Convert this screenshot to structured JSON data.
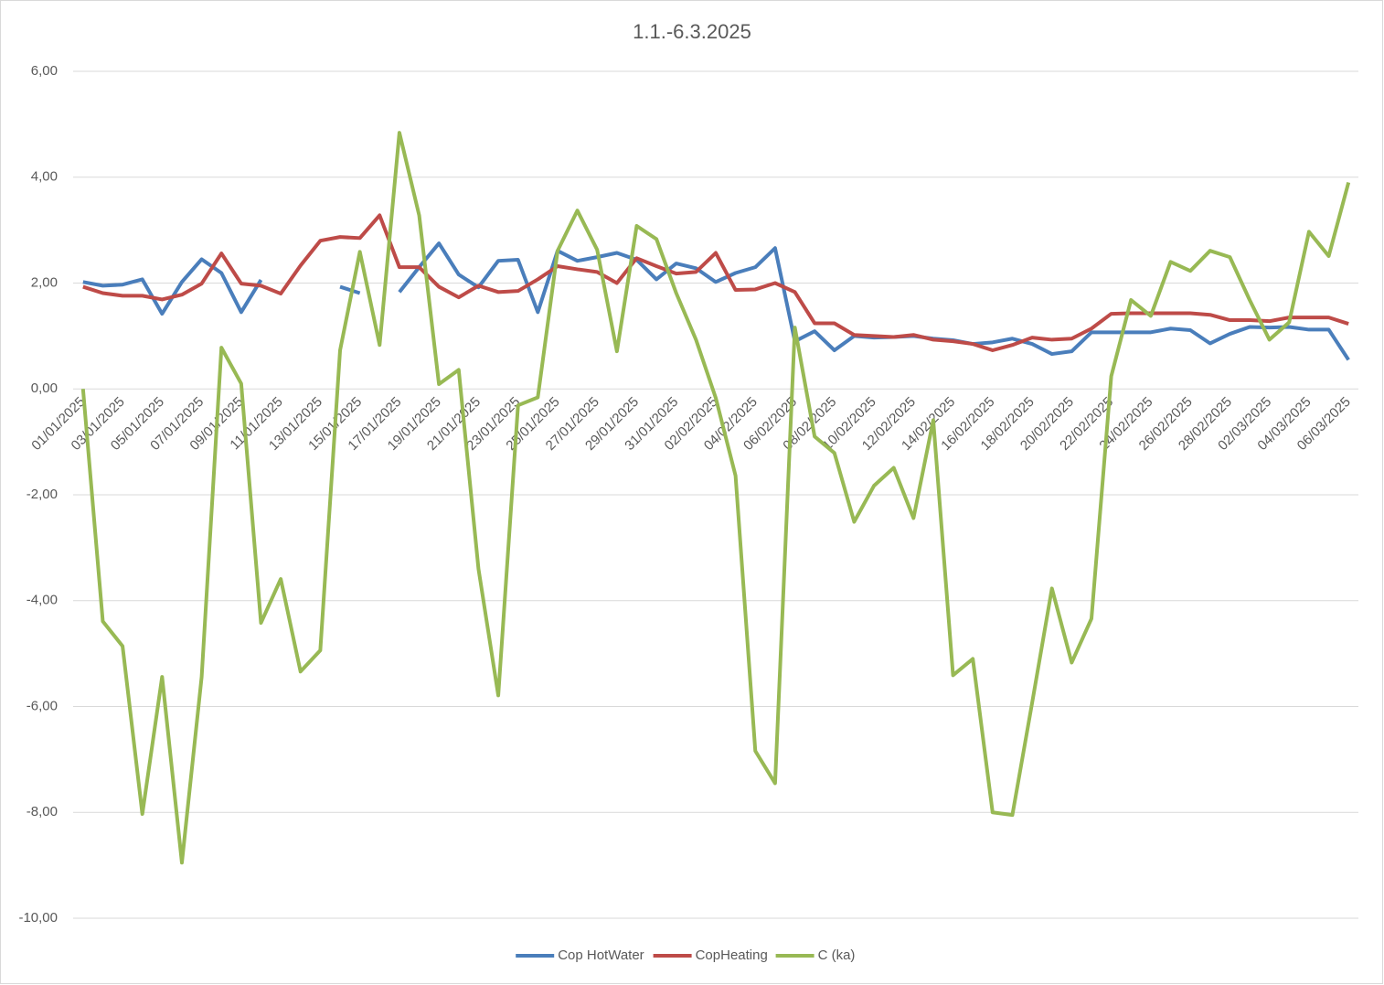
{
  "chart_data": {
    "type": "line",
    "title": "1.1.-6.3.2025",
    "categories": [
      "01/01/2025",
      null,
      "03/01/2025",
      null,
      "05/01/2025",
      null,
      "07/01/2025",
      null,
      "09/01/2025",
      null,
      "11/01/2025",
      null,
      "13/01/2025",
      null,
      "15/01/2025",
      null,
      "17/01/2025",
      null,
      "19/01/2025",
      null,
      "21/01/2025",
      null,
      "23/01/2025",
      null,
      "25/01/2025",
      null,
      "27/01/2025",
      null,
      "29/01/2025",
      null,
      "31/01/2025",
      null,
      "02/02/2025",
      null,
      "04/02/2025",
      null,
      "06/02/2025",
      null,
      "08/02/2025",
      null,
      "10/02/2025",
      null,
      "12/02/2025",
      null,
      "14/02/2025",
      null,
      "16/02/2025",
      null,
      "18/02/2025",
      null,
      "20/02/2025",
      null,
      "22/02/2025",
      null,
      "24/02/2025",
      null,
      "26/02/2025",
      null,
      "28/02/2025",
      null,
      "02/03/2025",
      null,
      "04/03/2025",
      null,
      "06/03/2025"
    ],
    "series": [
      {
        "name": "Cop HotWater",
        "color": "#4a7ebb",
        "values": [
          2.02,
          1.95,
          1.97,
          2.07,
          1.42,
          2.02,
          2.45,
          2.19,
          1.45,
          2.06,
          null,
          null,
          null,
          1.93,
          1.81,
          null,
          1.83,
          2.3,
          2.75,
          2.16,
          1.92,
          2.42,
          2.44,
          1.45,
          2.61,
          2.42,
          2.49,
          2.57,
          2.44,
          2.07,
          2.37,
          2.28,
          2.02,
          2.19,
          2.3,
          2.66,
          0.9,
          1.09,
          0.73,
          1.0,
          0.97,
          0.98,
          1.0,
          0.95,
          0.92,
          0.85,
          0.88,
          0.95,
          0.85,
          0.66,
          0.71,
          1.07,
          1.07,
          1.07,
          1.07,
          1.14,
          1.11,
          0.86,
          1.04,
          1.17,
          1.16,
          1.17,
          1.12,
          1.12,
          0.55
        ]
      },
      {
        "name": "CopHeating",
        "color": "#be4b48",
        "values": [
          1.93,
          1.81,
          1.76,
          1.76,
          1.69,
          1.78,
          1.99,
          2.56,
          1.99,
          1.95,
          1.8,
          2.33,
          2.8,
          2.87,
          2.85,
          3.28,
          2.3,
          2.3,
          1.93,
          1.73,
          1.95,
          1.83,
          1.85,
          2.07,
          2.32,
          2.26,
          2.21,
          2.0,
          2.47,
          2.32,
          2.18,
          2.21,
          2.57,
          1.87,
          1.88,
          2.0,
          1.83,
          1.24,
          1.24,
          1.02,
          1.0,
          0.98,
          1.02,
          0.93,
          0.9,
          0.85,
          0.73,
          0.83,
          0.97,
          0.93,
          0.95,
          1.14,
          1.42,
          1.43,
          1.43,
          1.43,
          1.43,
          1.4,
          1.3,
          1.3,
          1.28,
          1.35,
          1.35,
          1.35,
          1.23
        ]
      },
      {
        "name": "C (ka)",
        "color": "#98b954",
        "values": [
          0,
          -4.39,
          -4.86,
          -8.03,
          -5.44,
          -8.95,
          -5.44,
          0.78,
          0.1,
          -4.42,
          -3.59,
          -5.34,
          -4.94,
          0.73,
          2.59,
          0.83,
          4.84,
          3.28,
          0.09,
          0.36,
          -3.4,
          -5.79,
          -0.31,
          -0.16,
          2.61,
          3.37,
          2.63,
          0.71,
          3.08,
          2.83,
          1.81,
          0.93,
          -0.17,
          -1.64,
          -6.84,
          -7.45,
          1.16,
          -0.9,
          -1.21,
          -2.51,
          -1.83,
          -1.49,
          -2.44,
          -0.59,
          -5.41,
          -5.1,
          -8.0,
          -8.05,
          -5.93,
          -3.77,
          -5.17,
          -4.34,
          0.24,
          1.68,
          1.38,
          2.4,
          2.23,
          2.61,
          2.49,
          1.68,
          0.93,
          1.26,
          2.97,
          2.51,
          3.9
        ]
      }
    ],
    "ylim": [
      -10,
      6
    ],
    "yticks": [
      {
        "value": -10,
        "label": "-10,00"
      },
      {
        "value": -8,
        "label": "-8,00"
      },
      {
        "value": -6,
        "label": "-6,00"
      },
      {
        "value": -4,
        "label": "-4,00"
      },
      {
        "value": -2,
        "label": "-2,00"
      },
      {
        "value": 0,
        "label": "0,00"
      },
      {
        "value": 2,
        "label": "2,00"
      },
      {
        "value": 4,
        "label": "4,00"
      },
      {
        "value": 6,
        "label": "6,00"
      }
    ],
    "grid": true,
    "legend": "bottom"
  }
}
